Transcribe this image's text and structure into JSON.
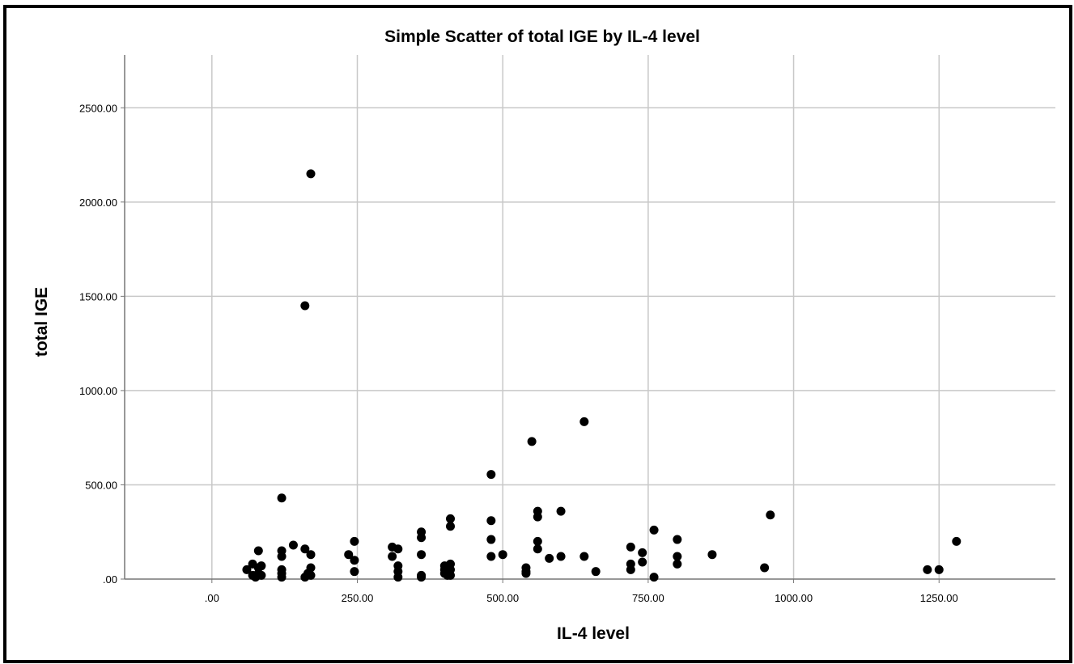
{
  "chart_data": {
    "type": "scatter",
    "title": "Simple Scatter of total IGE by IL-4 level",
    "xlabel": "IL-4 level",
    "ylabel": "total IGE",
    "xlim": [
      -150,
      1450
    ],
    "ylim": [
      0,
      2780
    ],
    "xticks": [
      0,
      250,
      500,
      750,
      1000,
      1250
    ],
    "xtick_labels": [
      ".00",
      "250.00",
      "500.00",
      "750.00",
      "1000.00",
      "1250.00"
    ],
    "yticks": [
      0,
      500,
      1000,
      1500,
      2000,
      2500
    ],
    "ytick_labels": [
      ".00",
      "500.00",
      "1000.00",
      "1500.00",
      "2000.00",
      "2500.00"
    ],
    "grid": true,
    "marker_color": "#000000",
    "grid_color": "#c8c8c8",
    "points": [
      [
        170,
        2150
      ],
      [
        160,
        1450
      ],
      [
        120,
        430
      ],
      [
        640,
        835
      ],
      [
        550,
        730
      ],
      [
        480,
        555
      ],
      [
        60,
        50
      ],
      [
        70,
        80
      ],
      [
        70,
        20
      ],
      [
        75,
        10
      ],
      [
        80,
        60
      ],
      [
        80,
        30
      ],
      [
        80,
        150
      ],
      [
        85,
        20
      ],
      [
        85,
        70
      ],
      [
        120,
        150
      ],
      [
        120,
        120
      ],
      [
        120,
        50
      ],
      [
        120,
        30
      ],
      [
        120,
        10
      ],
      [
        140,
        180
      ],
      [
        160,
        160
      ],
      [
        160,
        10
      ],
      [
        165,
        30
      ],
      [
        170,
        60
      ],
      [
        170,
        130
      ],
      [
        170,
        20
      ],
      [
        235,
        130
      ],
      [
        245,
        200
      ],
      [
        245,
        100
      ],
      [
        245,
        40
      ],
      [
        310,
        170
      ],
      [
        310,
        120
      ],
      [
        320,
        160
      ],
      [
        320,
        70
      ],
      [
        320,
        40
      ],
      [
        320,
        10
      ],
      [
        360,
        250
      ],
      [
        360,
        220
      ],
      [
        360,
        130
      ],
      [
        360,
        20
      ],
      [
        360,
        10
      ],
      [
        400,
        70
      ],
      [
        400,
        50
      ],
      [
        400,
        30
      ],
      [
        405,
        20
      ],
      [
        410,
        320
      ],
      [
        410,
        280
      ],
      [
        410,
        80
      ],
      [
        410,
        50
      ],
      [
        410,
        20
      ],
      [
        480,
        310
      ],
      [
        480,
        210
      ],
      [
        480,
        120
      ],
      [
        500,
        130
      ],
      [
        540,
        60
      ],
      [
        540,
        40
      ],
      [
        540,
        30
      ],
      [
        560,
        360
      ],
      [
        560,
        330
      ],
      [
        560,
        200
      ],
      [
        560,
        160
      ],
      [
        580,
        110
      ],
      [
        600,
        360
      ],
      [
        600,
        120
      ],
      [
        640,
        120
      ],
      [
        660,
        40
      ],
      [
        720,
        170
      ],
      [
        720,
        80
      ],
      [
        720,
        50
      ],
      [
        740,
        140
      ],
      [
        740,
        90
      ],
      [
        760,
        260
      ],
      [
        760,
        10
      ],
      [
        800,
        210
      ],
      [
        800,
        120
      ],
      [
        800,
        80
      ],
      [
        860,
        130
      ],
      [
        950,
        60
      ],
      [
        960,
        340
      ],
      [
        1230,
        50
      ],
      [
        1250,
        50
      ],
      [
        1280,
        200
      ]
    ]
  }
}
